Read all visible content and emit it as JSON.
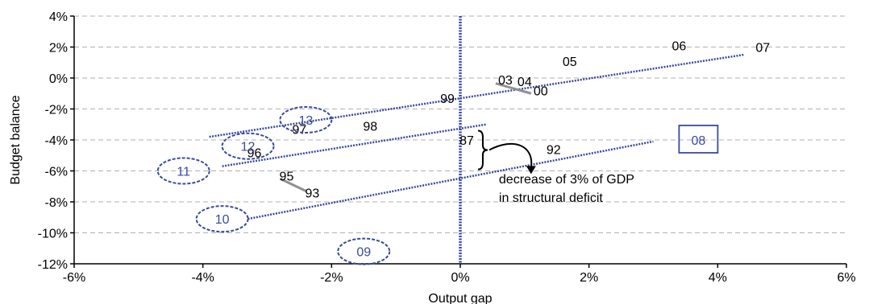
{
  "chart_data": {
    "type": "scatter",
    "xlabel": "Output gap",
    "ylabel": "Budget balance",
    "xlim": [
      -6,
      6
    ],
    "ylim": [
      -12,
      4
    ],
    "x_ticks": [
      -6,
      -4,
      -2,
      0,
      2,
      4,
      6
    ],
    "y_ticks": [
      4,
      2,
      0,
      -2,
      -4,
      -6,
      -8,
      -10,
      -12
    ],
    "x_tick_labels": [
      "-6%",
      "-4%",
      "-2%",
      "0%",
      "2%",
      "4%",
      "6%"
    ],
    "y_tick_labels": [
      "4%",
      "2%",
      "0%",
      "-2%",
      "-4%",
      "-6%",
      "-8%",
      "-10%",
      "-12%"
    ],
    "grid": "horizontal dashed",
    "points": [
      {
        "label": "07",
        "x": 4.7,
        "y": 2.0
      },
      {
        "label": "06",
        "x": 3.4,
        "y": 2.1
      },
      {
        "label": "05",
        "x": 1.7,
        "y": 1.1
      },
      {
        "label": "03",
        "x": 0.7,
        "y": -0.1
      },
      {
        "label": "04",
        "x": 1.0,
        "y": -0.2
      },
      {
        "label": "00",
        "x": 1.25,
        "y": -0.8
      },
      {
        "label": "99",
        "x": -0.2,
        "y": -1.3
      },
      {
        "label": "98",
        "x": -1.4,
        "y": -3.1
      },
      {
        "label": "97",
        "x": -2.5,
        "y": -3.3
      },
      {
        "label": "96",
        "x": -3.2,
        "y": -4.8
      },
      {
        "label": "87",
        "x": 0.1,
        "y": -4.0
      },
      {
        "label": "92",
        "x": 1.45,
        "y": -4.6
      },
      {
        "label": "95",
        "x": -2.7,
        "y": -6.3
      },
      {
        "label": "93",
        "x": -2.3,
        "y": -7.4
      }
    ],
    "highlighted_points": [
      {
        "label": "13",
        "x": -2.4,
        "y": -2.7
      },
      {
        "label": "12",
        "x": -3.3,
        "y": -4.4
      },
      {
        "label": "11",
        "x": -4.3,
        "y": -6.0
      },
      {
        "label": "10",
        "x": -3.7,
        "y": -9.1
      },
      {
        "label": "09",
        "x": -1.5,
        "y": -11.2
      },
      {
        "label": "08",
        "x": 3.7,
        "y": -4.0
      }
    ],
    "trend_lines": [
      {
        "x": [
          -3.9,
          4.4
        ],
        "y": [
          -3.8,
          1.5
        ]
      },
      {
        "x": [
          -3.7,
          0.4
        ],
        "y": [
          -5.7,
          -3.0
        ]
      },
      {
        "x": [
          -3.3,
          3.0
        ],
        "y": [
          -9.1,
          -4.1
        ]
      }
    ],
    "vertical_line_x": 0,
    "annotation": {
      "line1": "decrease of 3% of GDP",
      "line2": "in structural deficit"
    },
    "colors": {
      "dotted": "#3a4a9c",
      "text_blue": "#3a4a9c",
      "grid": "#b0b0b0"
    }
  }
}
